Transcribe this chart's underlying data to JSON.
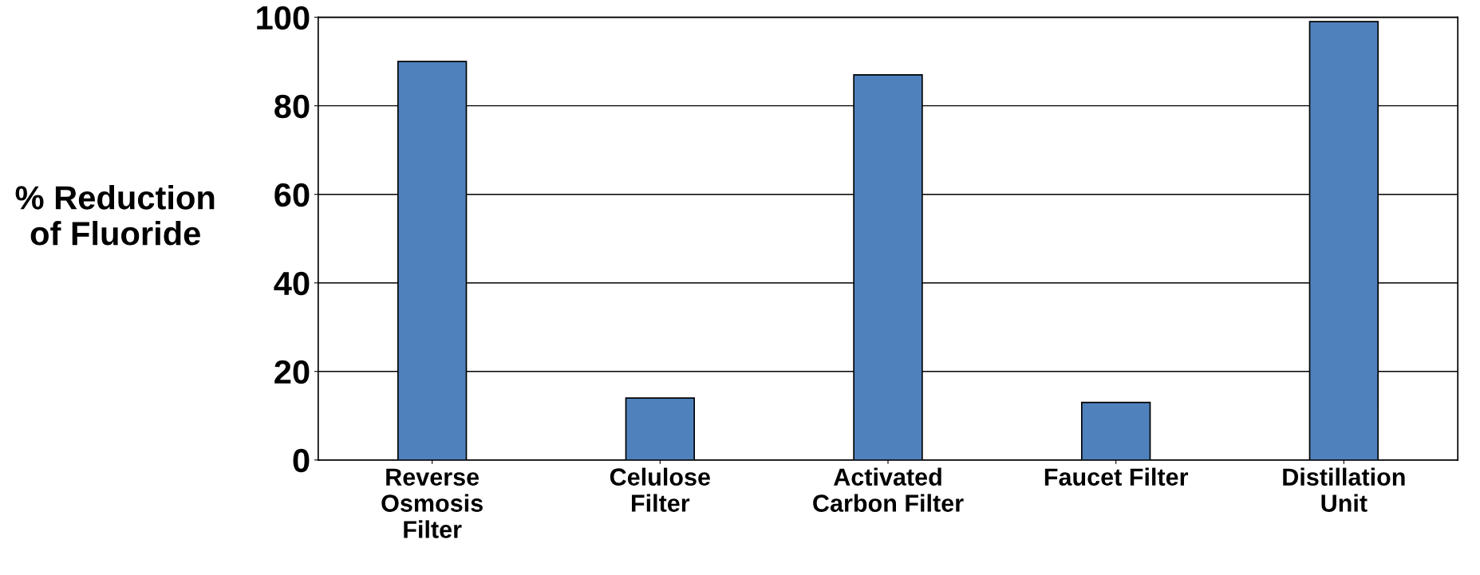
{
  "chart_data": {
    "type": "bar",
    "ylabel": "% Reduction\nof Fluoride",
    "categories": [
      "Reverse\nOsmosis\nFilter",
      "Celulose\nFilter",
      "Activated\nCarbon Filter",
      "Faucet Filter",
      "Distillation\nUnit"
    ],
    "values": [
      90,
      14,
      87,
      13,
      99
    ],
    "color": "#4f81bd",
    "ylim": [
      0,
      100
    ],
    "yticks": [
      0,
      20,
      40,
      60,
      80,
      100
    ],
    "grid": "y",
    "legend": false
  }
}
